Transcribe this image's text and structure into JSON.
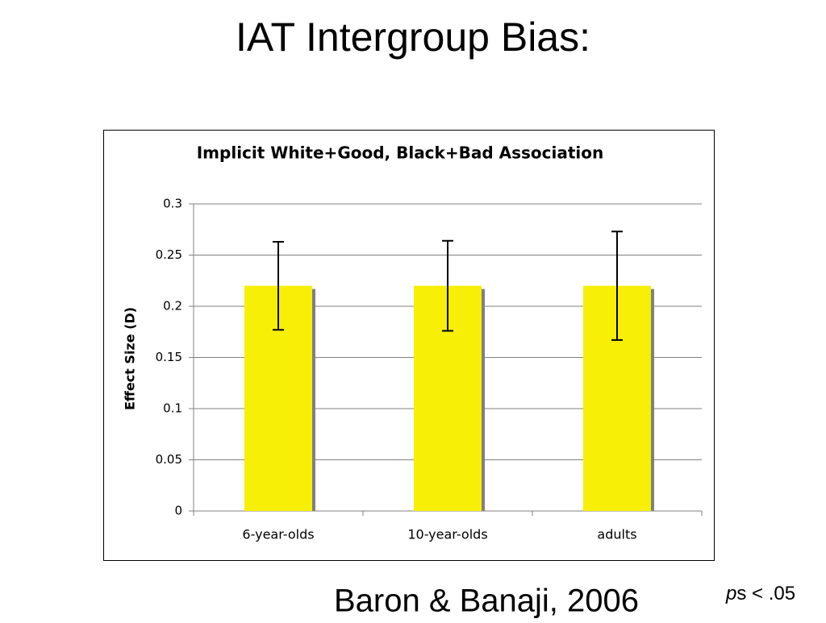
{
  "slide_title": "IAT Intergroup Bias:",
  "chart_data": {
    "type": "bar",
    "title": "Implicit White+Good, Black+Bad Association",
    "y_label": "Effect Size (D)",
    "categories": [
      "6-year-olds",
      "10-year-olds",
      "adults"
    ],
    "values": [
      0.22,
      0.22,
      0.22
    ],
    "errors": [
      0.043,
      0.044,
      0.053
    ],
    "color": "#f7ef05",
    "shadow_color": "#808080",
    "ylim": [
      0,
      0.3
    ],
    "yticks": [
      0,
      0.05,
      0.1,
      0.15,
      0.2,
      0.25,
      0.3
    ],
    "grid": true
  },
  "citation": "Baron & Banaji, 2006",
  "note": {
    "italic": "p",
    "rest": "s < .05"
  }
}
